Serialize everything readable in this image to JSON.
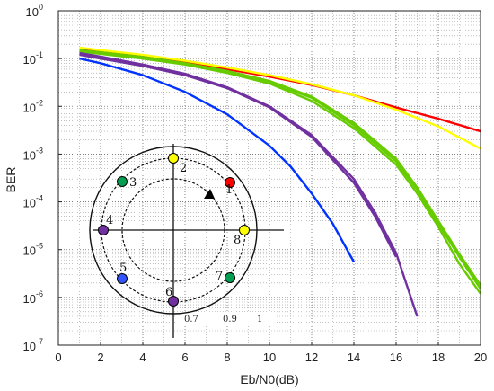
{
  "chart_data": {
    "type": "line",
    "xlabel": "Eb/N0(dB)",
    "ylabel": "BER",
    "xlim": [
      0,
      20
    ],
    "ylim": [
      1e-07,
      1
    ],
    "yscale": "log",
    "grid": "on (major and minor, dotted)",
    "x_ticks": [
      "0",
      "2",
      "4",
      "6",
      "8",
      "10",
      "12",
      "14",
      "16",
      "18",
      "20"
    ],
    "y_ticks": [
      {
        "base": "10",
        "exp": "0",
        "value": 1
      },
      {
        "base": "10",
        "exp": "-1",
        "value": 0.1
      },
      {
        "base": "10",
        "exp": "-2",
        "value": 0.01
      },
      {
        "base": "10",
        "exp": "-3",
        "value": 0.001
      },
      {
        "base": "10",
        "exp": "-4",
        "value": 0.0001
      },
      {
        "base": "10",
        "exp": "-5",
        "value": 1e-05
      },
      {
        "base": "10",
        "exp": "-6",
        "value": 1e-06
      },
      {
        "base": "10",
        "exp": "-7",
        "value": 1e-07
      }
    ],
    "series": [
      {
        "color": "#ff0000",
        "x": [
          1,
          2,
          4,
          6,
          8,
          10,
          12,
          14,
          16,
          18,
          20
        ],
        "y": [
          0.16,
          0.14,
          0.11,
          0.085,
          0.06,
          0.042,
          0.028,
          0.017,
          0.0095,
          0.0055,
          0.003
        ]
      },
      {
        "color": "#ffff00",
        "x": [
          1,
          2,
          4,
          6,
          8,
          10,
          12,
          14,
          16,
          18,
          20
        ],
        "y": [
          0.17,
          0.15,
          0.12,
          0.09,
          0.065,
          0.045,
          0.029,
          0.017,
          0.0085,
          0.0038,
          0.0013
        ]
      },
      {
        "color": "#66cc00",
        "x": [
          1,
          2,
          4,
          6,
          8,
          10,
          12,
          14,
          16,
          17,
          18,
          19,
          20
        ],
        "y": [
          0.14,
          0.125,
          0.1,
          0.075,
          0.05,
          0.03,
          0.013,
          0.0035,
          0.0006,
          0.00015,
          3e-05,
          5e-06,
          1.2e-06
        ]
      },
      {
        "color": "#66cc00",
        "x": [
          1,
          2,
          4,
          6,
          8,
          10,
          12,
          14,
          16,
          17,
          18,
          19,
          20
        ],
        "y": [
          0.145,
          0.13,
          0.105,
          0.078,
          0.052,
          0.032,
          0.015,
          0.004,
          0.0007,
          0.00018,
          3.5e-05,
          7e-06,
          1.5e-06
        ]
      },
      {
        "color": "#66cc00",
        "x": [
          1,
          2,
          4,
          6,
          8,
          10,
          12,
          14,
          16,
          17,
          18,
          19,
          20
        ],
        "y": [
          0.15,
          0.135,
          0.108,
          0.08,
          0.055,
          0.034,
          0.016,
          0.0045,
          0.0008,
          0.0002,
          4e-05,
          8e-06,
          1.8e-06
        ]
      },
      {
        "color": "#7030a0",
        "x": [
          1,
          2,
          4,
          6,
          8,
          10,
          12,
          14,
          15,
          16,
          17
        ],
        "y": [
          0.13,
          0.11,
          0.075,
          0.048,
          0.025,
          0.01,
          0.0025,
          0.0003,
          6e-05,
          8.5e-06,
          4e-07
        ]
      },
      {
        "color": "#7030a0",
        "x": [
          1,
          2,
          4,
          6,
          8,
          10,
          12,
          14,
          15,
          16
        ],
        "y": [
          0.12,
          0.1,
          0.07,
          0.045,
          0.024,
          0.0095,
          0.0023,
          0.00025,
          5e-05,
          7e-06
        ]
      },
      {
        "color": "#0033ff",
        "x": [
          1,
          2,
          4,
          6,
          8,
          10,
          11,
          12,
          13,
          14
        ],
        "y": [
          0.1,
          0.08,
          0.045,
          0.02,
          0.0068,
          0.0015,
          0.00055,
          0.00015,
          3.5e-05,
          5.5e-06
        ]
      }
    ]
  },
  "constellation": {
    "points": [
      {
        "label": "1",
        "color": "#ff0000"
      },
      {
        "label": "2",
        "color": "#ffff00"
      },
      {
        "label": "3",
        "color": "#00a050"
      },
      {
        "label": "4",
        "color": "#7030a0"
      },
      {
        "label": "5",
        "color": "#3355ff"
      },
      {
        "label": "6",
        "color": "#7030a0"
      },
      {
        "label": "7",
        "color": "#00a050"
      },
      {
        "label": "8",
        "color": "#ffff00"
      }
    ],
    "radii_labels": [
      "0.7",
      "0.9",
      "1"
    ]
  }
}
